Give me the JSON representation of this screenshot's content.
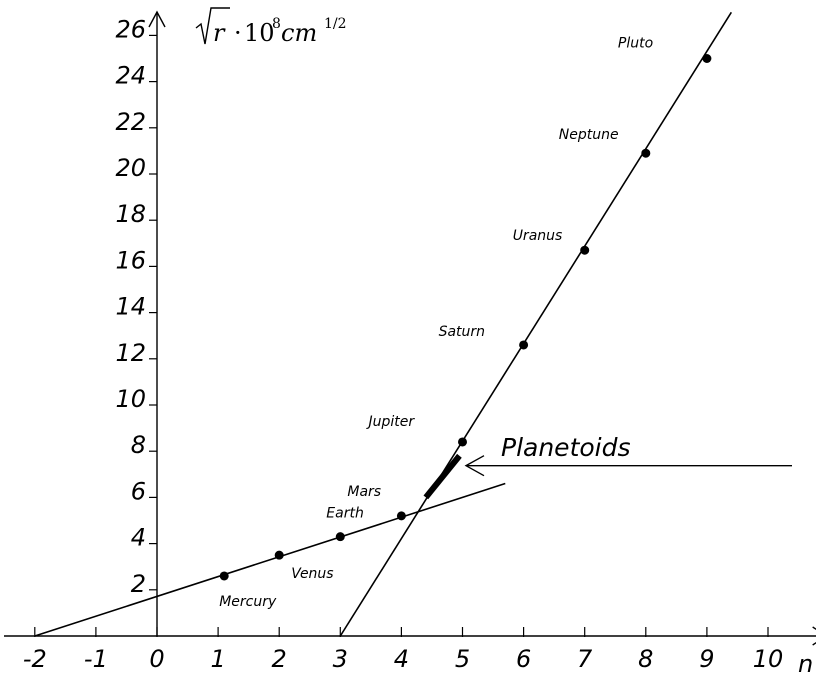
{
  "chart_data": {
    "type": "scatter",
    "title": "",
    "xlabel": "n",
    "ylabel": {
      "radical": "r",
      "dot": "·",
      "mantissa": "10",
      "exponent": "8",
      "unit": "cm",
      "unit_exponent": "1/2"
    },
    "xlim": [
      -2,
      10.6
    ],
    "ylim": [
      0,
      27
    ],
    "x_ticks": [
      -2,
      -1,
      0,
      1,
      2,
      3,
      4,
      5,
      6,
      7,
      8,
      9,
      10
    ],
    "y_ticks": [
      2,
      4,
      6,
      8,
      10,
      12,
      14,
      16,
      18,
      20,
      22,
      24,
      26
    ],
    "grid": false,
    "points": [
      {
        "name": "Mercury",
        "x": 1.1,
        "y": 2.6
      },
      {
        "name": "Venus",
        "x": 2.0,
        "y": 3.5
      },
      {
        "name": "Earth",
        "x": 3.0,
        "y": 4.3
      },
      {
        "name": "Mars",
        "x": 4.0,
        "y": 5.2
      },
      {
        "name": "Jupiter",
        "x": 5.0,
        "y": 8.4
      },
      {
        "name": "Saturn",
        "x": 6.0,
        "y": 12.6
      },
      {
        "name": "Uranus",
        "x": 7.0,
        "y": 16.7
      },
      {
        "name": "Neptune",
        "x": 8.0,
        "y": 20.9
      },
      {
        "name": "Pluto",
        "x": 9.0,
        "y": 25.0
      }
    ],
    "lines": [
      {
        "x": [
          -2,
          5.7
        ],
        "y": [
          0,
          6.6
        ]
      },
      {
        "x": [
          3,
          9.4
        ],
        "y": [
          0,
          27
        ]
      }
    ],
    "segments": [
      {
        "x": [
          4.4,
          4.95
        ],
        "y": [
          6.0,
          7.8
        ],
        "label": "Planetoids"
      }
    ],
    "annotations": [
      {
        "text": "Planetoids",
        "arrow_from": [
          10.4,
          7.2
        ],
        "arrow_to": [
          5.15,
          7.2
        ]
      }
    ]
  }
}
